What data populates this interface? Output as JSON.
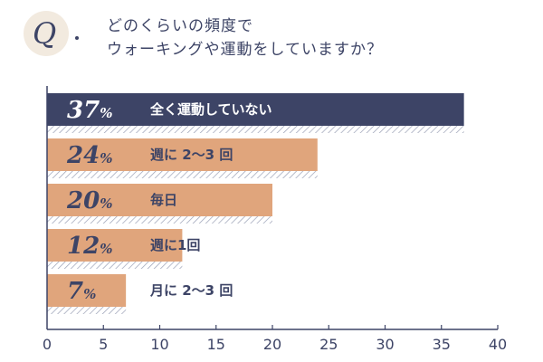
{
  "question": {
    "mark": "Q",
    "line1": "どのくらいの頻度で",
    "line2": "ウォーキングや運動をしていますか？"
  },
  "colors": {
    "primary": "#3d4466",
    "secondary": "#e0a57c",
    "text_on_primary": "#ffffff",
    "circle_bg": "#f2eadf"
  },
  "chart_data": {
    "type": "bar",
    "orientation": "horizontal",
    "categories": [
      "全く運動していない",
      "週に 2〜3 回",
      "毎日",
      "週に1回",
      "月に 2〜3 回"
    ],
    "values": [
      37,
      24,
      20,
      12,
      7
    ],
    "value_labels": [
      "37",
      "24",
      "20",
      "12",
      "7"
    ],
    "value_unit": "%",
    "xlim": [
      0,
      40
    ],
    "xticks": [
      "0",
      "5",
      "10",
      "15",
      "20",
      "25",
      "30",
      "35",
      "40"
    ],
    "grid": false,
    "highlight_index": 0
  }
}
